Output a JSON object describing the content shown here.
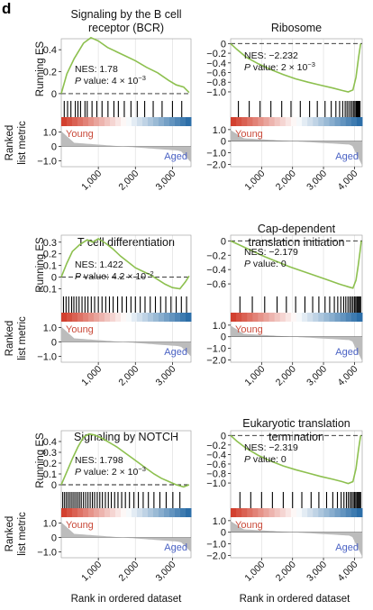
{
  "panel_letter": "d",
  "axis_labels": {
    "running_es": "Running ES",
    "ranked_metric_line1": "Ranked",
    "ranked_metric_line2": "list metric",
    "x_rank": "Rank in ordered dataset"
  },
  "groups": {
    "young": "Young",
    "aged": "Aged"
  },
  "colors": {
    "curve": "#8dc04f",
    "young": "#c94a3a",
    "aged": "#4a62c4",
    "red": "#d2402f",
    "blue": "#2c6ea8",
    "gray": "#bcbcbc"
  },
  "chart_data": [
    {
      "type": "line",
      "title": "Signaling by the B cell receptor (BCR)",
      "title_lines": [
        "Signaling by the B cell",
        "receptor (BCR)"
      ],
      "nes_label": "NES: 1.78",
      "p_prefix": "P",
      "p_label": " value: 4 × 10",
      "p_exp": "−3",
      "x_ticks": [
        1000,
        2000,
        3000
      ],
      "x_tick_labels": [
        "1,000",
        "2,000",
        "3,000"
      ],
      "xlim": [
        0,
        3500
      ],
      "es_ylim": [
        -0.05,
        0.5
      ],
      "es_ticks": [
        0,
        0.2,
        0.4
      ],
      "es_tick_labels": [
        "0",
        "0.2",
        "0.4"
      ],
      "es_curve": {
        "x": [
          0,
          150,
          350,
          600,
          800,
          1000,
          1250,
          1500,
          1750,
          2000,
          2300,
          2600,
          2900,
          3100,
          3300,
          3450
        ],
        "y": [
          0,
          0.18,
          0.32,
          0.46,
          0.51,
          0.48,
          0.42,
          0.38,
          0.34,
          0.3,
          0.24,
          0.19,
          0.12,
          0.08,
          0.06,
          0.01
        ]
      },
      "hits": [
        80,
        170,
        260,
        380,
        450,
        520,
        640,
        700,
        830,
        960,
        1100,
        1260,
        1420,
        1540,
        1700,
        1880,
        2050,
        2250,
        2480,
        2720,
        3000,
        3250
      ],
      "metric_ylim": [
        -1.4,
        1.4
      ],
      "metric_ticks": [
        1,
        0,
        -1
      ],
      "metric_tick_labels": [
        "1.0",
        "0",
        "−1.0"
      ],
      "metric_min": -1.1,
      "metric_max": 1.0
    },
    {
      "type": "line",
      "title": "Ribosome",
      "title_lines": [
        "Ribosome"
      ],
      "nes_label": "NES: −2.232",
      "p_prefix": "P",
      "p_label": " value: 2 × 10",
      "p_exp": "−3",
      "x_ticks": [
        1000,
        2000,
        3000,
        4000
      ],
      "x_tick_labels": [
        "1,000",
        "2,000",
        "3,000",
        "4,000"
      ],
      "xlim": [
        0,
        4250
      ],
      "es_ylim": [
        -1.15,
        0.1
      ],
      "es_ticks": [
        0,
        -0.2,
        -0.4,
        -0.6,
        -0.8,
        -1.0
      ],
      "es_tick_labels": [
        "0",
        "−0.2",
        "−0.4",
        "−0.6",
        "−0.8",
        "−1.0"
      ],
      "es_curve": {
        "x": [
          0,
          200,
          500,
          900,
          1300,
          1700,
          2100,
          2500,
          2900,
          3300,
          3600,
          3800,
          3950,
          4050,
          4130,
          4200
        ],
        "y": [
          0,
          -0.12,
          -0.28,
          -0.42,
          -0.54,
          -0.64,
          -0.73,
          -0.8,
          -0.86,
          -0.92,
          -0.97,
          -1.0,
          -0.96,
          -0.7,
          -0.3,
          0
        ]
      },
      "hits": [
        250,
        600,
        950,
        1300,
        1650,
        1950,
        2250,
        2550,
        2800,
        3050,
        3250,
        3400,
        3520,
        3620,
        3700,
        3760,
        3820,
        3880,
        3930,
        3980,
        4020,
        4060,
        4090,
        4120,
        4150,
        4180
      ],
      "metric_ylim": [
        -2.2,
        1.3
      ],
      "metric_ticks": [
        1,
        0,
        -1,
        -2
      ],
      "metric_tick_labels": [
        "1.0",
        "0",
        "−1.0",
        "−2.0"
      ],
      "metric_min": -2.1,
      "metric_max": 0.9
    },
    {
      "type": "line",
      "title": "T cell differentiation",
      "title_lines": [
        "T cell differentiation"
      ],
      "nes_label": "NES: 1.422",
      "p_prefix": "P",
      "p_label": " value: 4.2 × 10",
      "p_exp": "−2",
      "x_ticks": [
        1000,
        2000,
        3000
      ],
      "x_tick_labels": [
        "1,000",
        "2,000",
        "3,000"
      ],
      "xlim": [
        0,
        3500
      ],
      "es_ylim": [
        -0.15,
        0.36
      ],
      "es_ticks": [
        0.3,
        0.2,
        0.1,
        0,
        -0.1
      ],
      "es_tick_labels": [
        "0.3",
        "0.2",
        "0.1",
        "0",
        "−0.1"
      ],
      "es_curve": {
        "x": [
          0,
          150,
          300,
          500,
          700,
          850,
          1000,
          1200,
          1400,
          1600,
          1800,
          2000,
          2200,
          2400,
          2600,
          2800,
          3000,
          3200,
          3350,
          3450
        ],
        "y": [
          0,
          0.12,
          0.22,
          0.28,
          0.32,
          0.3,
          0.33,
          0.29,
          0.24,
          0.18,
          0.13,
          0.08,
          0.05,
          0.02,
          -0.02,
          -0.06,
          -0.09,
          -0.1,
          -0.04,
          0.01
        ]
      },
      "hits": [
        60,
        130,
        200,
        280,
        340,
        410,
        480,
        560,
        640,
        720,
        810,
        900,
        1000,
        1100,
        1200,
        1300,
        1400,
        1520,
        1640,
        1760,
        1880,
        2000,
        2130,
        2260,
        2400,
        2540,
        2680,
        2820,
        2960,
        3100,
        3240,
        3380
      ],
      "metric_ylim": [
        -1.4,
        1.4
      ],
      "metric_ticks": [
        1,
        0,
        -1
      ],
      "metric_tick_labels": [
        "1.0",
        "0",
        "−1.0"
      ],
      "metric_min": -1.0,
      "metric_max": 1.0
    },
    {
      "type": "line",
      "title": "Cap-dependent translation initiation",
      "title_lines": [
        "Cap-dependent",
        "translation initiation"
      ],
      "nes_label": "NES: −2.179",
      "p_prefix": "P",
      "p_label": " value: 0",
      "p_exp": "",
      "x_ticks": [
        1000,
        2000,
        3000,
        4000
      ],
      "x_tick_labels": [
        "1,000",
        "2,000",
        "3,000",
        "4,000"
      ],
      "xlim": [
        0,
        4250
      ],
      "es_ylim": [
        -0.75,
        0.08
      ],
      "es_ticks": [
        0,
        -0.2,
        -0.4,
        -0.6
      ],
      "es_tick_labels": [
        "0",
        "−0.2",
        "−0.4",
        "−0.6"
      ],
      "es_curve": {
        "x": [
          0,
          300,
          700,
          1100,
          1500,
          1900,
          2300,
          2700,
          3100,
          3500,
          3800,
          3950,
          4050,
          4120,
          4180,
          4220
        ],
        "y": [
          0,
          -0.06,
          -0.14,
          -0.22,
          -0.29,
          -0.36,
          -0.42,
          -0.48,
          -0.54,
          -0.6,
          -0.64,
          -0.66,
          -0.55,
          -0.35,
          -0.15,
          0
        ]
      },
      "hits": [
        300,
        700,
        1100,
        1500,
        1800,
        2100,
        2400,
        2650,
        2850,
        3050,
        3200,
        3350,
        3460,
        3560,
        3650,
        3720,
        3790,
        3850,
        3900,
        3950,
        4000,
        4040,
        4080,
        4110,
        4140,
        4170,
        4200
      ],
      "metric_ylim": [
        -2.2,
        1.3
      ],
      "metric_ticks": [
        1,
        0,
        -1,
        -2
      ],
      "metric_tick_labels": [
        "1.0",
        "0",
        "−1.0",
        "−2.0"
      ],
      "metric_min": -2.1,
      "metric_max": 0.9
    },
    {
      "type": "line",
      "title": "Signaling by NOTCH",
      "title_lines": [
        "Signaling by NOTCH"
      ],
      "nes_label": "NES: 1.798",
      "p_prefix": "P",
      "p_label": " value: 2 × 10",
      "p_exp": "−3",
      "x_ticks": [
        1000,
        2000,
        3000
      ],
      "x_tick_labels": [
        "1,000",
        "2,000",
        "3,000"
      ],
      "xlim": [
        0,
        3500
      ],
      "es_ylim": [
        -0.05,
        0.5
      ],
      "es_ticks": [
        0,
        0.1,
        0.2,
        0.3,
        0.4
      ],
      "es_tick_labels": [
        "0",
        "0.1",
        "0.2",
        "0.3",
        "0.4"
      ],
      "es_curve": {
        "x": [
          0,
          150,
          300,
          450,
          600,
          750,
          900,
          1100,
          1300,
          1500,
          1700,
          1900,
          2100,
          2300,
          2500,
          2700,
          2900,
          3100,
          3300,
          3450
        ],
        "y": [
          0,
          0.12,
          0.24,
          0.35,
          0.44,
          0.47,
          0.46,
          0.43,
          0.39,
          0.35,
          0.3,
          0.25,
          0.2,
          0.15,
          0.1,
          0.06,
          0.03,
          0.0,
          -0.02,
          0
        ]
      },
      "hits": [
        40,
        90,
        140,
        190,
        240,
        290,
        340,
        390,
        440,
        490,
        540,
        600,
        660,
        720,
        780,
        840,
        900,
        970,
        1040,
        1110,
        1190,
        1270,
        1350,
        1440,
        1530,
        1630,
        1730,
        1840,
        1960,
        2080,
        2210,
        2350,
        2500,
        2660,
        2830,
        3010,
        3200
      ],
      "metric_ylim": [
        -1.4,
        1.4
      ],
      "metric_ticks": [
        1,
        0,
        -1
      ],
      "metric_tick_labels": [
        "1.0",
        "0",
        "−1.0"
      ],
      "metric_min": -1.0,
      "metric_max": 1.0
    },
    {
      "type": "line",
      "title": "Eukaryotic translation termination",
      "title_lines": [
        "Eukaryotic translation",
        "termination"
      ],
      "nes_label": "NES: −2.319",
      "p_prefix": "P",
      "p_label": " value: 0",
      "p_exp": "",
      "x_ticks": [
        1000,
        2000,
        3000,
        4000
      ],
      "x_tick_labels": [
        "1,000",
        "2,000",
        "3,000",
        "4,000"
      ],
      "xlim": [
        0,
        4250
      ],
      "es_ylim": [
        -1.15,
        0.1
      ],
      "es_ticks": [
        0,
        -0.2,
        -0.4,
        -0.6,
        -0.8,
        -1.0
      ],
      "es_tick_labels": [
        "0",
        "−0.2",
        "−0.4",
        "−0.6",
        "−0.8",
        "−1.0"
      ],
      "es_curve": {
        "x": [
          0,
          200,
          500,
          900,
          1300,
          1700,
          2100,
          2500,
          2900,
          3300,
          3600,
          3800,
          3950,
          4050,
          4130,
          4200
        ],
        "y": [
          0,
          -0.12,
          -0.27,
          -0.42,
          -0.54,
          -0.64,
          -0.72,
          -0.79,
          -0.86,
          -0.92,
          -0.97,
          -1.01,
          -0.97,
          -0.7,
          -0.3,
          0
        ]
      },
      "hits": [
        300,
        650,
        1000,
        1350,
        1700,
        2000,
        2300,
        2600,
        2850,
        3100,
        3300,
        3450,
        3570,
        3660,
        3740,
        3800,
        3860,
        3910,
        3960,
        4000,
        4040,
        4080,
        4110,
        4140,
        4170,
        4200
      ],
      "metric_ylim": [
        -2.2,
        1.3
      ],
      "metric_ticks": [
        1,
        0,
        -1,
        -2
      ],
      "metric_tick_labels": [
        "1.0",
        "0",
        "−1.0",
        "−2.0"
      ],
      "metric_min": -2.1,
      "metric_max": 0.9
    }
  ]
}
